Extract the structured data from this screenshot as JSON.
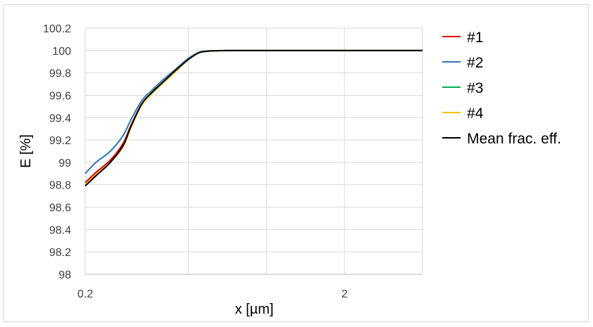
{
  "chart_data": {
    "type": "line",
    "title": "",
    "xlabel": "x [µm]",
    "ylabel": "E [%]",
    "x_scale": "log",
    "xlim": [
      0.2,
      4
    ],
    "ylim": [
      98,
      100.2
    ],
    "y_ticks": [
      "98",
      "98.2",
      "98.4",
      "98.6",
      "98.8",
      "99",
      "99.2",
      "99.4",
      "99.6",
      "99.8",
      "100",
      "100.2"
    ],
    "x_tick_labels": [
      {
        "value": 0.2,
        "label": "0.2"
      },
      {
        "value": 2,
        "label": "2"
      }
    ],
    "grid": "horizontal and vertical",
    "legend_position": "right",
    "series": [
      {
        "name": "#1",
        "color": "#e00000",
        "x": [
          0.2,
          0.22,
          0.25,
          0.28,
          0.3,
          0.33,
          0.36,
          0.4,
          0.45,
          0.5,
          0.55,
          0.6,
          0.65,
          0.7,
          0.8,
          1.0,
          1.5,
          2.0,
          3.0,
          4.0
        ],
        "y": [
          98.82,
          98.91,
          99.02,
          99.17,
          99.33,
          99.52,
          99.62,
          99.72,
          99.83,
          99.92,
          99.98,
          99.995,
          99.998,
          100.0,
          100.0,
          100.0,
          100.0,
          100.0,
          100.0,
          100.0
        ]
      },
      {
        "name": "#2",
        "color": "#2e75b6",
        "x": [
          0.2,
          0.22,
          0.25,
          0.28,
          0.3,
          0.33,
          0.36,
          0.4,
          0.45,
          0.5,
          0.55,
          0.6,
          0.65,
          0.7,
          0.8,
          1.0,
          1.5,
          2.0,
          3.0,
          4.0
        ],
        "y": [
          98.9,
          99.0,
          99.1,
          99.24,
          99.38,
          99.55,
          99.64,
          99.74,
          99.84,
          99.93,
          99.985,
          99.997,
          99.999,
          100.0,
          100.0,
          100.0,
          100.0,
          100.0,
          100.0,
          100.0
        ]
      },
      {
        "name": "#3",
        "color": "#00b050",
        "x": [
          0.2,
          0.22,
          0.25,
          0.28,
          0.3,
          0.33,
          0.36,
          0.4,
          0.45,
          0.5,
          0.55,
          0.6,
          0.65,
          0.7,
          0.8,
          1.0,
          1.5,
          2.0,
          3.0,
          4.0
        ],
        "y": [
          98.79,
          98.88,
          99.0,
          99.15,
          99.32,
          99.52,
          99.62,
          99.72,
          99.83,
          99.92,
          99.98,
          99.995,
          99.998,
          100.0,
          100.0,
          100.0,
          100.0,
          100.0,
          100.0,
          100.0
        ]
      },
      {
        "name": "#4",
        "color": "#ffc000",
        "x": [
          0.2,
          0.22,
          0.25,
          0.28,
          0.3,
          0.33,
          0.36,
          0.4,
          0.45,
          0.5,
          0.55,
          0.6,
          0.65,
          0.7,
          0.8,
          1.0,
          1.5,
          2.0,
          3.0,
          4.0
        ],
        "y": [
          98.8,
          98.89,
          99.0,
          99.14,
          99.31,
          99.51,
          99.61,
          99.71,
          99.82,
          99.92,
          99.98,
          99.995,
          99.998,
          100.0,
          100.0,
          100.0,
          100.0,
          100.0,
          100.0,
          100.0
        ]
      },
      {
        "name": "Mean frac. eff.",
        "color": "#000000",
        "x": [
          0.2,
          0.22,
          0.25,
          0.28,
          0.3,
          0.33,
          0.36,
          0.4,
          0.45,
          0.5,
          0.55,
          0.6,
          0.65,
          0.7,
          0.8,
          1.0,
          1.5,
          2.0,
          3.0,
          4.0
        ],
        "y": [
          98.79,
          98.88,
          99.0,
          99.15,
          99.32,
          99.52,
          99.62,
          99.72,
          99.83,
          99.92,
          99.98,
          99.995,
          99.998,
          100.0,
          100.0,
          100.0,
          100.0,
          100.0,
          100.0,
          100.0
        ]
      }
    ]
  }
}
